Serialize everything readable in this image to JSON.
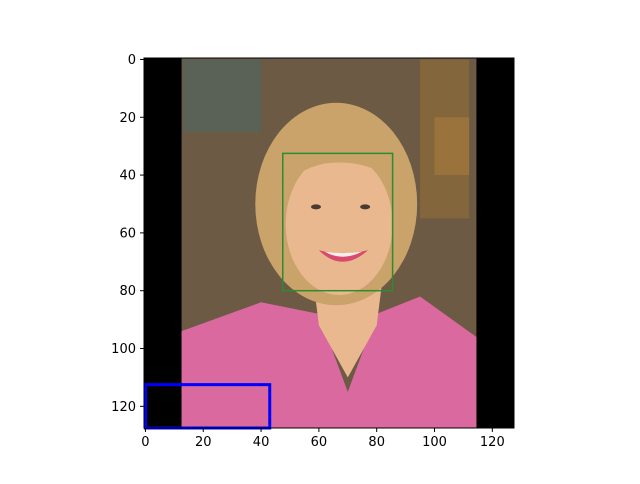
{
  "figure": {
    "x_ticks": [
      "0",
      "20",
      "40",
      "60",
      "80",
      "100",
      "120"
    ],
    "y_ticks": [
      "0",
      "20",
      "40",
      "60",
      "80",
      "100",
      "120"
    ],
    "x_tick_values": [
      0,
      20,
      40,
      60,
      80,
      100,
      120
    ],
    "y_tick_values": [
      0,
      20,
      40,
      60,
      80,
      100,
      120
    ],
    "x_range": [
      -0.5,
      127.5
    ],
    "y_range": [
      127.5,
      -0.5
    ],
    "face_box": {
      "x0": 47.5,
      "y0": 32.5,
      "x1": 85.5,
      "y1": 80.0,
      "color": "#2e8b2e"
    },
    "corner_box": {
      "x0": 0.0,
      "y0": 112.5,
      "x1": 43.0,
      "y1": 127.5,
      "color": "#0000ff"
    },
    "photo": {
      "black_bar_left": [
        -0.5,
        12.5
      ],
      "black_bar_right": [
        114.5,
        127.5
      ],
      "blazer_color": "#d9699f",
      "hair_color": "#c9a36a",
      "skin_color": "#e9b88f",
      "background_color": "#6c5a44"
    }
  }
}
